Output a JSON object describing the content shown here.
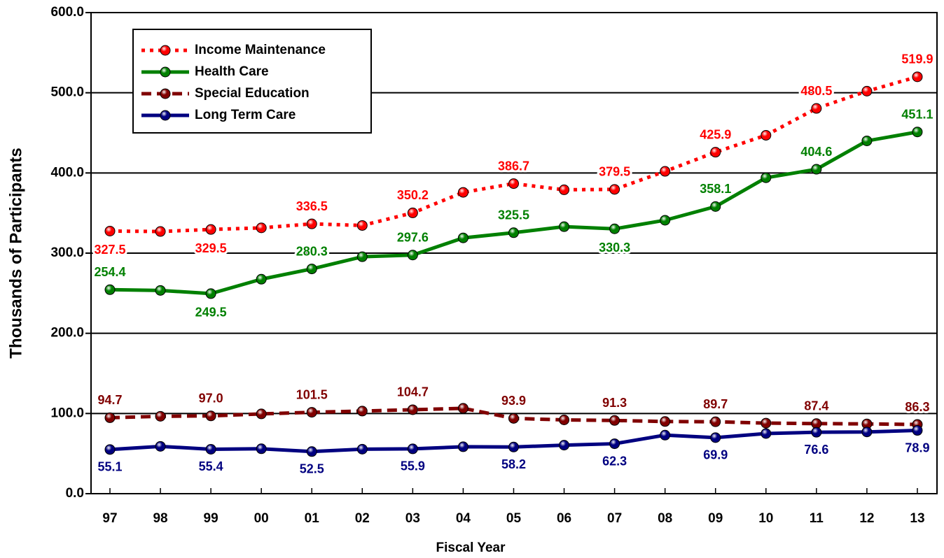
{
  "chart_data": {
    "type": "line",
    "xlabel": "Fiscal Year",
    "ylabel": "Thousands of Participants",
    "categories": [
      "97",
      "98",
      "99",
      "00",
      "01",
      "02",
      "03",
      "04",
      "05",
      "06",
      "07",
      "08",
      "09",
      "10",
      "11",
      "12",
      "13"
    ],
    "ylim": [
      0,
      600
    ],
    "yticks": [
      {
        "value": 0,
        "label": "0.0"
      },
      {
        "value": 100,
        "label": "100.0"
      },
      {
        "value": 200,
        "label": "200.0"
      },
      {
        "value": 300,
        "label": "300.0"
      },
      {
        "value": 400,
        "label": "400.0"
      },
      {
        "value": 500,
        "label": "500.0"
      },
      {
        "value": 600,
        "label": "600.0"
      }
    ],
    "grid": true,
    "legend": "upper left",
    "series": [
      {
        "name": "Income Maintenance",
        "color": "#ff0000",
        "line_style": "dotted",
        "values": [
          327.5,
          327.0,
          329.5,
          331.5,
          336.5,
          334.5,
          350.2,
          375.8,
          386.7,
          379.0,
          379.5,
          402.0,
          425.9,
          447.0,
          480.5,
          502.0,
          519.9
        ],
        "value_labels": [
          "327.5",
          null,
          "329.5",
          null,
          "336.5",
          null,
          "350.2",
          null,
          "386.7",
          null,
          "379.5",
          null,
          "425.9",
          null,
          "480.5",
          null,
          "519.9"
        ]
      },
      {
        "name": "Health Care",
        "color": "#008000",
        "line_style": "solid",
        "values": [
          254.4,
          253.5,
          249.5,
          267.5,
          280.3,
          295.5,
          297.6,
          319.0,
          325.5,
          333.0,
          330.3,
          341.0,
          358.1,
          394.0,
          404.6,
          440.0,
          451.1
        ],
        "value_labels": [
          "254.4",
          null,
          "249.5",
          null,
          "280.3",
          null,
          "297.6",
          null,
          "325.5",
          null,
          "330.3",
          null,
          "358.1",
          null,
          "404.6",
          null,
          "451.1"
        ]
      },
      {
        "name": "Special Education",
        "color": "#800000",
        "line_style": "dashed",
        "values": [
          94.7,
          96.5,
          97.0,
          99.5,
          101.5,
          103.0,
          104.7,
          106.5,
          93.9,
          92.0,
          91.3,
          90.0,
          89.7,
          88.0,
          87.4,
          87.0,
          86.3
        ],
        "value_labels": [
          "94.7",
          null,
          "97.0",
          null,
          "101.5",
          null,
          "104.7",
          null,
          "93.9",
          null,
          "91.3",
          null,
          "89.7",
          null,
          "87.4",
          null,
          "86.3"
        ]
      },
      {
        "name": "Long Term Care",
        "color": "#000080",
        "line_style": "solid",
        "values": [
          55.1,
          59.0,
          55.4,
          56.0,
          52.5,
          55.5,
          55.9,
          58.5,
          58.2,
          60.5,
          62.3,
          73.0,
          69.9,
          75.0,
          76.6,
          77.0,
          78.9
        ],
        "value_labels": [
          "55.1",
          null,
          "55.4",
          null,
          "52.5",
          null,
          "55.9",
          null,
          "58.2",
          null,
          "62.3",
          null,
          "69.9",
          null,
          "76.6",
          null,
          "78.9"
        ]
      }
    ]
  }
}
